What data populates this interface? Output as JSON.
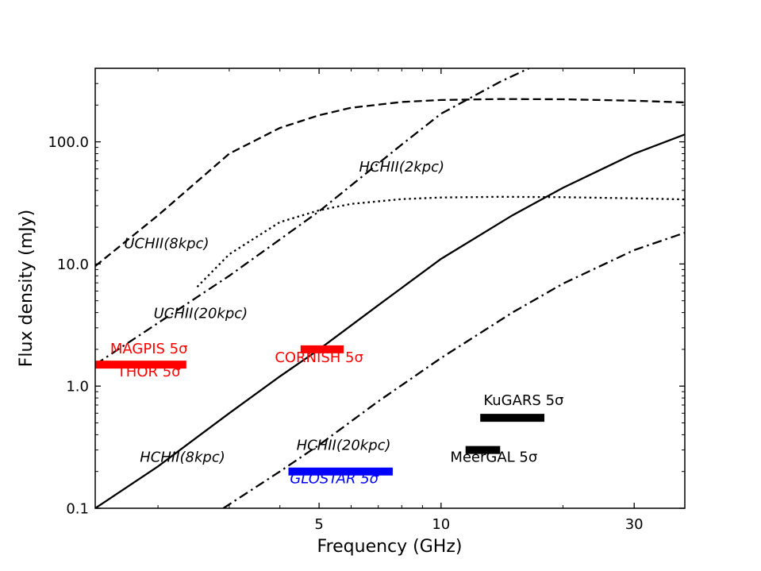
{
  "chart_data": {
    "type": "line",
    "xlabel": "Frequency (GHz)",
    "ylabel": "Flux density (mJy)",
    "xscale": "log",
    "yscale": "log",
    "xlim": [
      1.4,
      40
    ],
    "ylim": [
      0.1,
      400
    ],
    "xticks": [
      {
        "value": 5,
        "label": "5"
      },
      {
        "value": 10,
        "label": "10"
      },
      {
        "value": 30,
        "label": "30"
      }
    ],
    "yticks": [
      {
        "value": 0.1,
        "label": "0.1"
      },
      {
        "value": 1.0,
        "label": "1.0"
      },
      {
        "value": 10.0,
        "label": "10.0"
      },
      {
        "value": 100.0,
        "label": "100.0"
      }
    ],
    "grid": false,
    "series": [
      {
        "name": "UCHII(8kpc)",
        "style": "dashed",
        "color": "#000000",
        "x": [
          1.4,
          2.0,
          3.0,
          4.0,
          5.0,
          6.0,
          8.0,
          10.0,
          14.0,
          20.0,
          30.0,
          40.0
        ],
        "y": [
          9.6,
          25,
          80,
          130,
          165,
          190,
          212,
          220,
          224,
          223,
          217,
          210
        ]
      },
      {
        "name": "UCHII(20kpc)",
        "style": "dotted",
        "color": "#000000",
        "x": [
          2.5,
          3.0,
          4.0,
          5.0,
          6.0,
          8.0,
          10.0,
          14.0,
          20.0,
          30.0,
          40.0
        ],
        "y": [
          6.5,
          12,
          22,
          27.5,
          31,
          34,
          35,
          35.5,
          35.2,
          34.5,
          33.8
        ]
      },
      {
        "name": "HCHII(2kpc)",
        "style": "dashdot",
        "color": "#000000",
        "x": [
          1.4,
          3.0,
          5.0,
          8.0,
          10.0,
          14.0,
          16.5
        ],
        "y": [
          1.5,
          8,
          27,
          95,
          170,
          310,
          400
        ]
      },
      {
        "name": "HCHII(8kpc)",
        "style": "solid",
        "color": "#000000",
        "x": [
          1.4,
          2.0,
          3.0,
          4.0,
          5.0,
          7.0,
          10.0,
          15.0,
          20.0,
          30.0,
          40.0
        ],
        "y": [
          0.1,
          0.22,
          0.6,
          1.2,
          2.0,
          4.6,
          11,
          25,
          42,
          80,
          115
        ]
      },
      {
        "name": "HCHII(20kpc)",
        "style": "dashdot",
        "color": "#000000",
        "x": [
          2.9,
          4.0,
          5.0,
          7.0,
          10.0,
          15.0,
          20.0,
          30.0,
          40.0
        ],
        "y": [
          0.1,
          0.2,
          0.33,
          0.75,
          1.7,
          4.0,
          6.9,
          13,
          18
        ]
      }
    ],
    "bands": [
      {
        "name": "MAGPIS 5σ",
        "x": [
          1.4,
          2.35
        ],
        "y": 1.5,
        "color": "#ff0000",
        "label_at": [
          1.9,
          1.85
        ]
      },
      {
        "name": "THOR 5σ",
        "x": [
          1.4,
          2.35
        ],
        "y": 1.5,
        "color": "#ff0000",
        "label_at": [
          1.9,
          1.2
        ]
      },
      {
        "name": "CORNISH 5σ",
        "x": [
          4.5,
          5.75
        ],
        "y": 2.0,
        "color": "#ff0000",
        "label_at": [
          5.0,
          1.57
        ]
      },
      {
        "name": "GLOSTAR 5σ",
        "x": [
          4.2,
          7.6
        ],
        "y": 0.2,
        "color": "#0000ff",
        "label_at": [
          5.45,
          0.16
        ],
        "italic": true
      },
      {
        "name": "KuGARS 5σ",
        "x": [
          12.5,
          18.0
        ],
        "y": 0.55,
        "color": "#000000",
        "label_at": [
          16.0,
          0.7
        ]
      },
      {
        "name": "MeerGAL 5σ",
        "x": [
          11.5,
          14.0
        ],
        "y": 0.3,
        "color": "#000000",
        "label_at": [
          13.5,
          0.24
        ]
      }
    ],
    "annotations": [
      {
        "text": "HCHII(2kpc)",
        "x": 8.0,
        "y": 57
      },
      {
        "text": "UCHII(8kpc)",
        "x": 2.1,
        "y": 13.5
      },
      {
        "text": "UCHII(20kpc)",
        "x": 2.55,
        "y": 3.6
      },
      {
        "text": "HCHII(8kpc)",
        "x": 2.3,
        "y": 0.24
      },
      {
        "text": "HCHII(20kpc)",
        "x": 5.75,
        "y": 0.3
      }
    ]
  }
}
